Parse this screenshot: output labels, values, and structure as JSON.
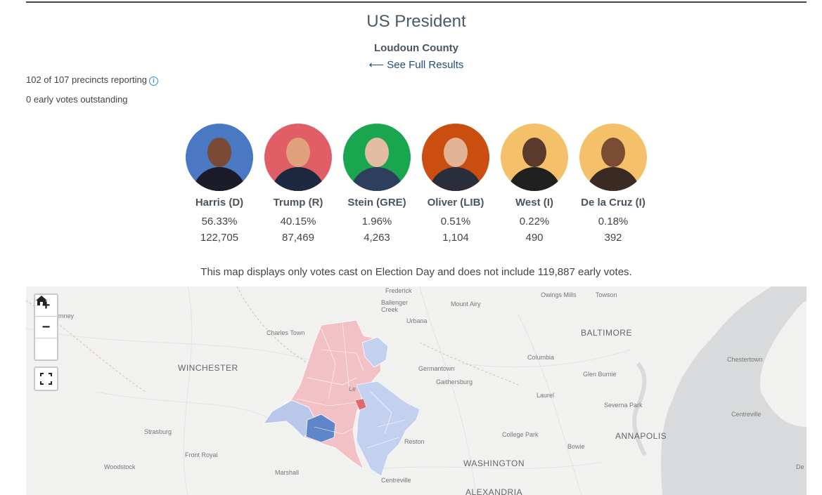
{
  "header": {
    "title": "US President",
    "county": "Loudoun County",
    "full_results_link": "⟵ See Full Results",
    "precincts": "102 of 107 precincts reporting",
    "early_outstanding": "0 early votes outstanding"
  },
  "candidates": [
    {
      "name": "Harris (D)",
      "pct": "56.33%",
      "votes": "122,705",
      "color": "#4a78c2"
    },
    {
      "name": "Trump (R)",
      "pct": "40.15%",
      "votes": "87,469",
      "color": "#e05f66"
    },
    {
      "name": "Stein (GRE)",
      "pct": "1.96%",
      "votes": "4,263",
      "color": "#1aa64f"
    },
    {
      "name": "Oliver (LIB)",
      "pct": "0.51%",
      "votes": "1,104",
      "color": "#c94e10"
    },
    {
      "name": "West (I)",
      "pct": "0.22%",
      "votes": "490",
      "color": "#f5c06a"
    },
    {
      "name": "De la Cruz (I)",
      "pct": "0.18%",
      "votes": "392",
      "color": "#f5c06a"
    }
  ],
  "map": {
    "note": "This map displays only votes cast on Election Day and does not include 119,887 early votes.",
    "controls": {
      "zoom_in": "+",
      "zoom_out": "−"
    },
    "labels": {
      "frederick": "Frederick",
      "ballenger_creek": "Ballenger Creek",
      "urbana": "Urbana",
      "mount_airy": "Mount Airy",
      "owings_mills": "Owings Mills",
      "towson": "Towson",
      "baltimore": "BALTIMORE",
      "charles_town": "Charles Town",
      "winchester": "WINCHESTER",
      "germantown": "Germantown",
      "gaithersburg": "Gaithersburg",
      "columbia": "Columbia",
      "glen_burnie": "Glen Burnie",
      "chestertown": "Chestertown",
      "laurel": "Laurel",
      "severna_park": "Severna Park",
      "centreville_md": "Centreville",
      "annapolis": "ANNAPOLIS",
      "strasburg": "Strasburg",
      "front_royal": "Front Royal",
      "woodstock": "Woodstock",
      "marshall": "Marshall",
      "reston": "Reston",
      "college_park": "College Park",
      "bowie": "Bowie",
      "washington": "WASHINGTON",
      "centreville_va": "Centreville",
      "alexandria": "ALEXANDRIA",
      "romney_partial": "mney",
      "le_partial": "Le",
      "de_partial": "De"
    }
  }
}
